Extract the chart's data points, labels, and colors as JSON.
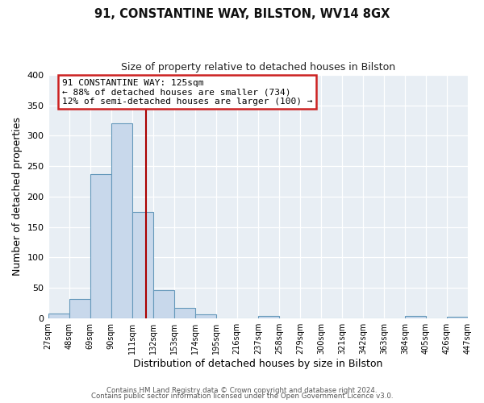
{
  "title": "91, CONSTANTINE WAY, BILSTON, WV14 8GX",
  "subtitle": "Size of property relative to detached houses in Bilston",
  "xlabel": "Distribution of detached houses by size in Bilston",
  "ylabel": "Number of detached properties",
  "bin_edges": [
    27,
    48,
    69,
    90,
    111,
    132,
    153,
    174,
    195,
    216,
    237,
    258,
    279,
    300,
    321,
    342,
    363,
    384,
    405,
    426,
    447
  ],
  "bar_heights": [
    8,
    32,
    237,
    320,
    175,
    46,
    17,
    6,
    0,
    0,
    4,
    0,
    0,
    0,
    0,
    0,
    0,
    4,
    0,
    2
  ],
  "bar_color": "#c8d8eb",
  "bar_edge_color": "#6699bb",
  "tick_labels": [
    "27sqm",
    "48sqm",
    "69sqm",
    "90sqm",
    "111sqm",
    "132sqm",
    "153sqm",
    "174sqm",
    "195sqm",
    "216sqm",
    "237sqm",
    "258sqm",
    "279sqm",
    "300sqm",
    "321sqm",
    "342sqm",
    "363sqm",
    "384sqm",
    "405sqm",
    "426sqm",
    "447sqm"
  ],
  "property_size": 125,
  "vline_color": "#aa0000",
  "annotation_line1": "91 CONSTANTINE WAY: 125sqm",
  "annotation_line2": "← 88% of detached houses are smaller (734)",
  "annotation_line3": "12% of semi-detached houses are larger (100) →",
  "annotation_box_facecolor": "#ffffff",
  "annotation_box_edgecolor": "#cc2222",
  "ylim": [
    0,
    400
  ],
  "yticks": [
    0,
    50,
    100,
    150,
    200,
    250,
    300,
    350,
    400
  ],
  "fig_bg_color": "#ffffff",
  "plot_bg_color": "#e8eef4",
  "grid_color": "#ffffff",
  "footer_line1": "Contains HM Land Registry data © Crown copyright and database right 2024.",
  "footer_line2": "Contains public sector information licensed under the Open Government Licence v3.0."
}
